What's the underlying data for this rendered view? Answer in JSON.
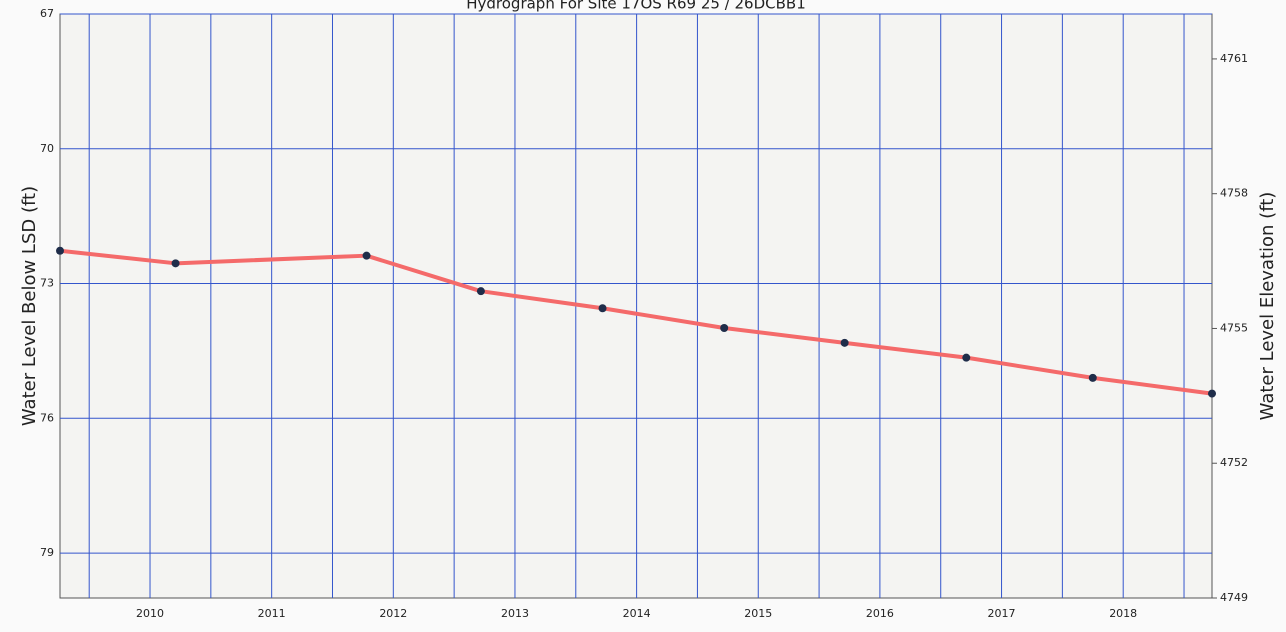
{
  "chart_data": {
    "type": "line",
    "title": "Hydrograph For Site 17OS R69 25 / 26DCBB1",
    "y_label": "Water Level Below LSD (ft)",
    "y2_label": "Water Level Elevation (ft)",
    "x": [
      2009.26,
      2010.21,
      2011.78,
      2012.72,
      2013.72,
      2014.72,
      2015.71,
      2016.71,
      2017.75,
      2018.73
    ],
    "series": [
      {
        "name": "Water Level",
        "color": "#f46a6a",
        "marker_color": "#1f2d4a",
        "values": [
          72.27,
          72.55,
          72.38,
          73.17,
          73.55,
          73.99,
          74.32,
          74.65,
          75.1,
          75.45
        ]
      }
    ],
    "xlim": [
      2009.26,
      2018.73
    ],
    "xticks": [
      2010,
      2011,
      2012,
      2013,
      2014,
      2015,
      2016,
      2017,
      2018
    ],
    "xminorticks": [
      2009.5,
      2010.5,
      2011.5,
      2012.5,
      2013.5,
      2014.5,
      2015.5,
      2016.5,
      2017.5,
      2018.5
    ],
    "ylim": [
      80,
      67
    ],
    "yticks": [
      67,
      70,
      73,
      76,
      79
    ],
    "y2lim": [
      4749,
      4762
    ],
    "y2ticks": [
      4761,
      4758,
      4755,
      4752,
      4749
    ],
    "grid": true,
    "grid_color": "#3355cc"
  }
}
